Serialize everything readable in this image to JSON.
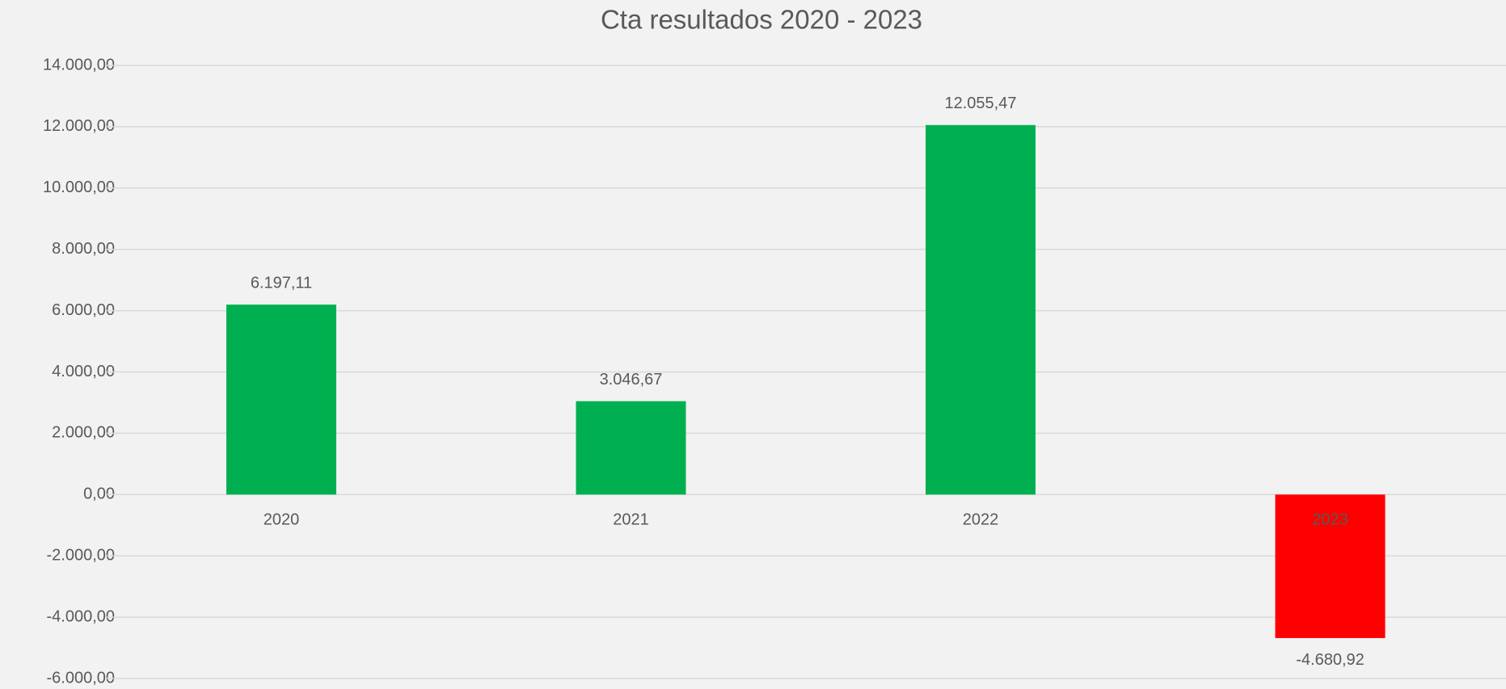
{
  "chart_data": {
    "type": "bar",
    "title": "Cta resultados 2020 - 2023",
    "categories": [
      "2020",
      "2021",
      "2022",
      "2023"
    ],
    "values": [
      6197.11,
      3046.67,
      12055.47,
      -4680.92
    ],
    "value_labels": [
      "6.197,11",
      "3.046,67",
      "12.055,47",
      "-4.680,92"
    ],
    "colors": [
      "#00b050",
      "#00b050",
      "#00b050",
      "#ff0000"
    ],
    "ylim": [
      -6000,
      14000
    ],
    "yticks": [
      {
        "value": 14000,
        "label": "14.000,00"
      },
      {
        "value": 12000,
        "label": "12.000,00"
      },
      {
        "value": 10000,
        "label": "10.000,00"
      },
      {
        "value": 8000,
        "label": "8.000,00"
      },
      {
        "value": 6000,
        "label": "6.000,00"
      },
      {
        "value": 4000,
        "label": "4.000,00"
      },
      {
        "value": 2000,
        "label": "2.000,00"
      },
      {
        "value": 0,
        "label": "0,00"
      },
      {
        "value": -2000,
        "label": "-2.000,00"
      },
      {
        "value": -4000,
        "label": "-4.000,00"
      },
      {
        "value": -6000,
        "label": "-6.000,00"
      }
    ],
    "grid": true
  }
}
